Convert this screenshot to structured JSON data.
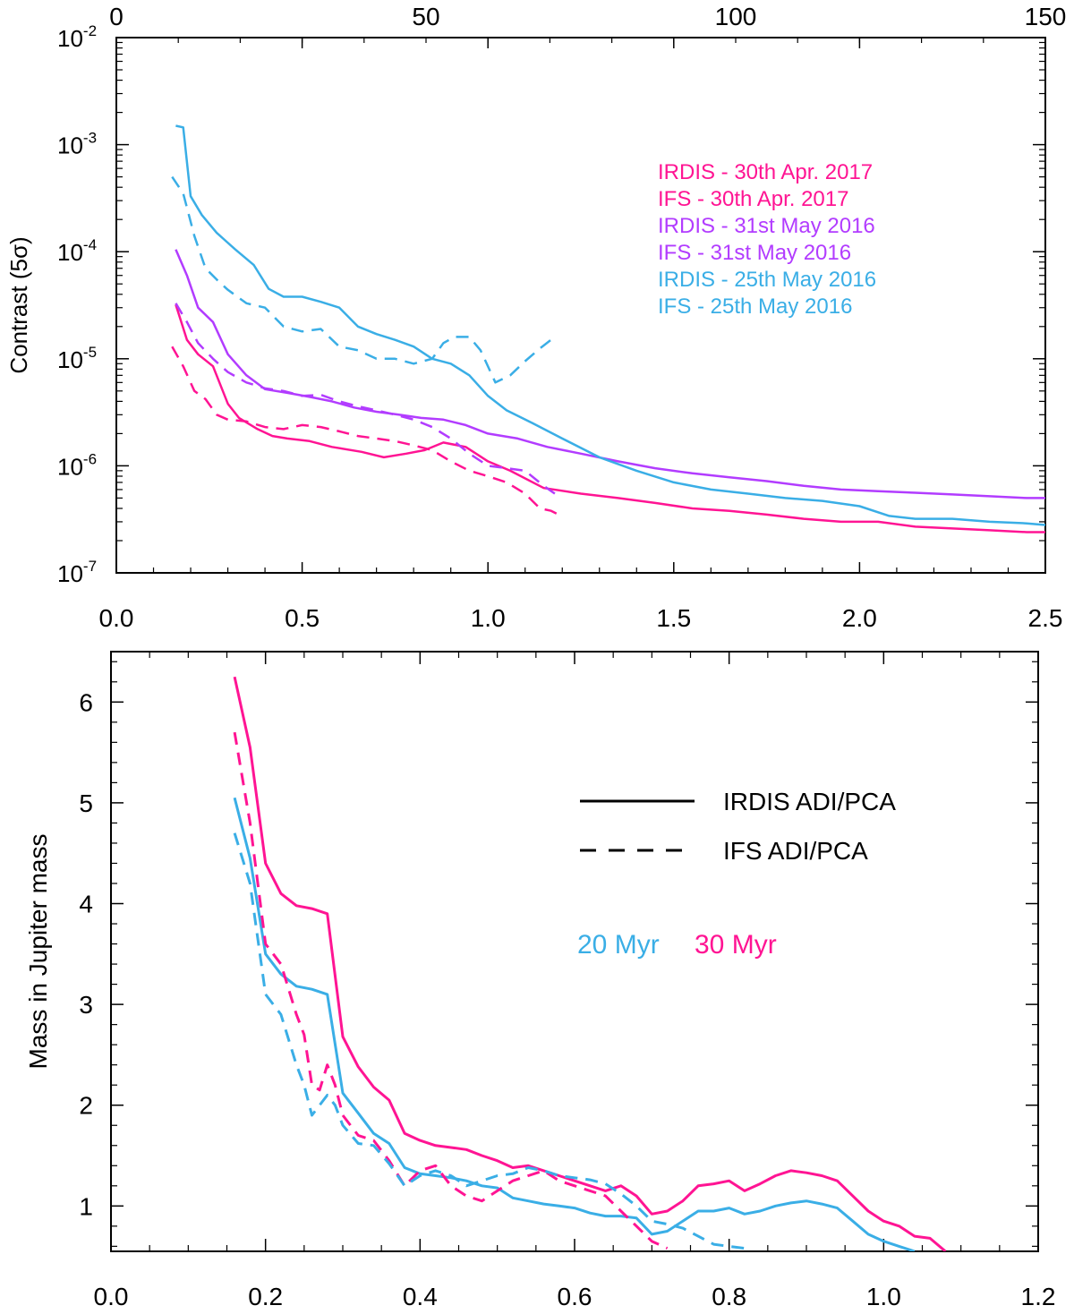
{
  "colors": {
    "irdis_2017": "#ff1493",
    "ifs_2017": "#ff1493",
    "irdis_2016_may31": "#b23cff",
    "ifs_2016_may31": "#b23cff",
    "irdis_2016_may25": "#3aaee6",
    "ifs_2016_may25": "#3aaee6",
    "black": "#000000",
    "myr20": "#3aaee6",
    "myr30": "#ff1493"
  },
  "chart_data": [
    {
      "type": "line",
      "yscale": "log",
      "title": "",
      "xlabel": "",
      "ylabel": "Contrast (5σ)",
      "xlim": [
        0,
        2.5
      ],
      "ylim": [
        1e-07,
        0.01
      ],
      "x_ticks": [
        "0.0",
        "0.5",
        "1.0",
        "1.5",
        "2.0",
        "2.5"
      ],
      "x_tick_values": [
        0,
        0.5,
        1.0,
        1.5,
        2.0,
        2.5
      ],
      "top_axis": {
        "range": [
          0,
          150
        ],
        "ticks": [
          "0",
          "50",
          "100",
          "150"
        ],
        "tick_values": [
          0,
          50,
          100,
          150
        ]
      },
      "y_ticks": [
        {
          "value": 1e-07,
          "base": "10",
          "exp": "-7"
        },
        {
          "value": 1e-06,
          "base": "10",
          "exp": "-6"
        },
        {
          "value": 1e-05,
          "base": "10",
          "exp": "-5"
        },
        {
          "value": 0.0001,
          "base": "10",
          "exp": "-4"
        },
        {
          "value": 0.001,
          "base": "10",
          "exp": "-3"
        },
        {
          "value": 0.01,
          "base": "10",
          "exp": "-2"
        }
      ],
      "legend": {
        "position": "top-right",
        "entries": [
          {
            "label": "IRDIS - 30th Apr. 2017",
            "color": "#ff1493"
          },
          {
            "label": "IFS - 30th Apr. 2017",
            "color": "#ff1493"
          },
          {
            "label": "IRDIS - 31st May 2016",
            "color": "#b23cff"
          },
          {
            "label": "IFS - 31st May 2016",
            "color": "#b23cff"
          },
          {
            "label": "IRDIS - 25th May 2016",
            "color": "#3aaee6"
          },
          {
            "label": "IFS - 25th May 2016",
            "color": "#3aaee6"
          }
        ]
      },
      "series": [
        {
          "name": "IRDIS - 30th Apr. 2017",
          "color": "#ff1493",
          "dashed": false,
          "x": [
            0.16,
            0.19,
            0.22,
            0.26,
            0.3,
            0.33,
            0.38,
            0.42,
            0.46,
            0.52,
            0.58,
            0.66,
            0.72,
            0.78,
            0.83,
            0.88,
            0.94,
            1.0,
            1.06,
            1.15,
            1.25,
            1.35,
            1.45,
            1.55,
            1.65,
            1.75,
            1.85,
            1.95,
            2.05,
            2.15,
            2.25,
            2.35,
            2.45,
            2.5
          ],
          "y": [
            3.2e-05,
            1.5e-05,
            1.1e-05,
            8.5e-06,
            3.8e-06,
            2.8e-06,
            2.2e-06,
            1.9e-06,
            1.8e-06,
            1.7e-06,
            1.5e-06,
            1.35e-06,
            1.2e-06,
            1.3e-06,
            1.4e-06,
            1.65e-06,
            1.5e-06,
            1.1e-06,
            9e-07,
            6.2e-07,
            5.5e-07,
            5e-07,
            4.5e-07,
            4e-07,
            3.8e-07,
            3.5e-07,
            3.2e-07,
            3e-07,
            3e-07,
            2.7e-07,
            2.6e-07,
            2.5e-07,
            2.4e-07,
            2.4e-07
          ]
        },
        {
          "name": "IFS - 30th Apr. 2017",
          "color": "#ff1493",
          "dashed": true,
          "x": [
            0.15,
            0.18,
            0.21,
            0.24,
            0.27,
            0.3,
            0.35,
            0.4,
            0.45,
            0.5,
            0.55,
            0.6,
            0.65,
            0.7,
            0.75,
            0.8,
            0.85,
            0.9,
            0.95,
            1.0,
            1.05,
            1.1,
            1.14,
            1.17,
            1.19
          ],
          "y": [
            1.3e-05,
            8.5e-06,
            5e-06,
            4.2e-06,
            3e-06,
            2.7e-06,
            2.6e-06,
            2.3e-06,
            2.2e-06,
            2.4e-06,
            2.3e-06,
            2.1e-06,
            1.9e-06,
            1.8e-06,
            1.7e-06,
            1.55e-06,
            1.4e-06,
            1.1e-06,
            9e-07,
            8e-07,
            7e-07,
            5.5e-07,
            4e-07,
            3.8e-07,
            3.5e-07
          ]
        },
        {
          "name": "IRDIS - 31st May 2016",
          "color": "#b23cff",
          "dashed": false,
          "x": [
            0.16,
            0.19,
            0.22,
            0.26,
            0.3,
            0.35,
            0.4,
            0.46,
            0.52,
            0.58,
            0.64,
            0.7,
            0.76,
            0.82,
            0.88,
            0.94,
            1.0,
            1.08,
            1.16,
            1.25,
            1.35,
            1.45,
            1.55,
            1.65,
            1.75,
            1.85,
            1.95,
            2.05,
            2.15,
            2.25,
            2.35,
            2.45,
            2.5
          ],
          "y": [
            0.000105,
            6e-05,
            3e-05,
            2.2e-05,
            1.1e-05,
            7e-06,
            5.2e-06,
            4.8e-06,
            4.4e-06,
            4e-06,
            3.5e-06,
            3.2e-06,
            3e-06,
            2.8e-06,
            2.7e-06,
            2.4e-06,
            2e-06,
            1.8e-06,
            1.5e-06,
            1.3e-06,
            1.1e-06,
            9.5e-07,
            8.5e-07,
            7.8e-07,
            7.2e-07,
            6.5e-07,
            6e-07,
            5.8e-07,
            5.6e-07,
            5.4e-07,
            5.2e-07,
            5e-07,
            5e-07
          ]
        },
        {
          "name": "IFS - 31st May 2016",
          "color": "#b23cff",
          "dashed": true,
          "x": [
            0.16,
            0.19,
            0.22,
            0.26,
            0.3,
            0.35,
            0.4,
            0.45,
            0.5,
            0.55,
            0.6,
            0.65,
            0.7,
            0.75,
            0.8,
            0.85,
            0.9,
            0.95,
            1.0,
            1.05,
            1.1,
            1.15,
            1.18
          ],
          "y": [
            3.3e-05,
            2.2e-05,
            1.4e-05,
            1e-05,
            7.5e-06,
            6e-06,
            5.3e-06,
            5e-06,
            4.5e-06,
            4.6e-06,
            4e-06,
            3.6e-06,
            3.3e-06,
            3e-06,
            2.7e-06,
            2.3e-06,
            1.8e-06,
            1.3e-06,
            1e-06,
            9.5e-07,
            9e-07,
            6.5e-07,
            5.5e-07
          ]
        },
        {
          "name": "IRDIS - 25th May 2016",
          "color": "#3aaee6",
          "dashed": false,
          "x": [
            0.16,
            0.18,
            0.2,
            0.23,
            0.27,
            0.32,
            0.37,
            0.41,
            0.45,
            0.5,
            0.55,
            0.6,
            0.65,
            0.7,
            0.75,
            0.8,
            0.85,
            0.9,
            0.95,
            1.0,
            1.05,
            1.12,
            1.2,
            1.3,
            1.4,
            1.5,
            1.6,
            1.7,
            1.8,
            1.9,
            2.0,
            2.08,
            2.15,
            2.25,
            2.35,
            2.45,
            2.5
          ],
          "y": [
            0.0015,
            0.00145,
            0.00033,
            0.00022,
            0.00015,
            0.000105,
            7.5e-05,
            4.5e-05,
            3.8e-05,
            3.8e-05,
            3.4e-05,
            3e-05,
            2e-05,
            1.7e-05,
            1.5e-05,
            1.3e-05,
            1e-05,
            9e-06,
            7e-06,
            4.5e-06,
            3.3e-06,
            2.5e-06,
            1.8e-06,
            1.2e-06,
            9e-07,
            7e-07,
            6e-07,
            5.5e-07,
            5e-07,
            4.7e-07,
            4.2e-07,
            3.4e-07,
            3.2e-07,
            3.2e-07,
            3e-07,
            2.9e-07,
            2.8e-07
          ]
        },
        {
          "name": "IFS - 25th May 2016",
          "color": "#3aaee6",
          "dashed": true,
          "x": [
            0.15,
            0.18,
            0.21,
            0.24,
            0.27,
            0.3,
            0.35,
            0.4,
            0.45,
            0.5,
            0.55,
            0.6,
            0.65,
            0.7,
            0.75,
            0.8,
            0.85,
            0.88,
            0.91,
            0.95,
            0.98,
            1.02,
            1.06,
            1.1,
            1.14,
            1.18
          ],
          "y": [
            0.0005,
            0.00035,
            0.00014,
            7e-05,
            5.5e-05,
            4.4e-05,
            3.3e-05,
            3e-05,
            2e-05,
            1.8e-05,
            1.9e-05,
            1.3e-05,
            1.2e-05,
            1e-05,
            1e-05,
            9e-06,
            1e-05,
            1.4e-05,
            1.6e-05,
            1.6e-05,
            1.2e-05,
            6e-06,
            7e-06,
            9.5e-06,
            1.25e-05,
            1.6e-05
          ]
        }
      ]
    },
    {
      "type": "line",
      "title": "",
      "xlabel": "",
      "ylabel": "Mass in Jupiter mass",
      "xlim": [
        0,
        1.2
      ],
      "ylim": [
        0.55,
        6.5
      ],
      "x_ticks": [
        "0.0",
        "0.2",
        "0.4",
        "0.6",
        "0.8",
        "1.0",
        "1.2"
      ],
      "x_tick_values": [
        0,
        0.2,
        0.4,
        0.6,
        0.8,
        1.0,
        1.2
      ],
      "y_ticks": [
        "1",
        "2",
        "3",
        "4",
        "5",
        "6"
      ],
      "y_tick_values": [
        1,
        2,
        3,
        4,
        5,
        6
      ],
      "legend": {
        "position": "top-right",
        "entries": [
          {
            "label": "IRDIS ADI/PCA",
            "style": "solid",
            "color": "#000000"
          },
          {
            "label": "IFS ADI/PCA",
            "style": "dashed",
            "color": "#000000"
          }
        ]
      },
      "age_labels": [
        {
          "label": "20 Myr",
          "color": "#3aaee6"
        },
        {
          "label": "30 Myr",
          "color": "#ff1493"
        }
      ],
      "series": [
        {
          "name": "IRDIS 30 Myr",
          "color": "#ff1493",
          "dashed": false,
          "x": [
            0.16,
            0.18,
            0.2,
            0.22,
            0.24,
            0.26,
            0.28,
            0.3,
            0.32,
            0.34,
            0.36,
            0.38,
            0.4,
            0.42,
            0.44,
            0.46,
            0.48,
            0.5,
            0.52,
            0.54,
            0.56,
            0.58,
            0.6,
            0.62,
            0.64,
            0.66,
            0.68,
            0.7,
            0.72,
            0.74,
            0.76,
            0.78,
            0.8,
            0.82,
            0.84,
            0.86,
            0.88,
            0.9,
            0.92,
            0.94,
            0.96,
            0.98,
            1.0,
            1.02,
            1.04,
            1.06,
            1.08
          ],
          "y": [
            6.25,
            5.55,
            4.4,
            4.1,
            3.98,
            3.95,
            3.9,
            2.68,
            2.38,
            2.18,
            2.05,
            1.72,
            1.65,
            1.6,
            1.58,
            1.56,
            1.5,
            1.45,
            1.38,
            1.4,
            1.35,
            1.3,
            1.25,
            1.2,
            1.15,
            1.2,
            1.1,
            0.92,
            0.95,
            1.05,
            1.2,
            1.22,
            1.25,
            1.15,
            1.22,
            1.3,
            1.35,
            1.33,
            1.3,
            1.25,
            1.1,
            0.95,
            0.85,
            0.8,
            0.7,
            0.68,
            0.55
          ]
        },
        {
          "name": "IRDIS 20 Myr",
          "color": "#3aaee6",
          "dashed": false,
          "x": [
            0.16,
            0.18,
            0.2,
            0.22,
            0.24,
            0.26,
            0.28,
            0.3,
            0.32,
            0.34,
            0.36,
            0.38,
            0.4,
            0.42,
            0.44,
            0.46,
            0.48,
            0.5,
            0.52,
            0.54,
            0.56,
            0.58,
            0.6,
            0.62,
            0.64,
            0.66,
            0.68,
            0.7,
            0.72,
            0.74,
            0.76,
            0.78,
            0.8,
            0.82,
            0.84,
            0.86,
            0.88,
            0.9,
            0.92,
            0.94,
            0.96,
            0.98,
            1.0,
            1.02,
            1.04
          ],
          "y": [
            5.05,
            4.45,
            3.5,
            3.3,
            3.18,
            3.15,
            3.1,
            2.12,
            1.92,
            1.72,
            1.62,
            1.38,
            1.32,
            1.3,
            1.28,
            1.25,
            1.2,
            1.18,
            1.08,
            1.05,
            1.02,
            1.0,
            0.98,
            0.93,
            0.9,
            0.9,
            0.88,
            0.72,
            0.75,
            0.85,
            0.95,
            0.95,
            0.98,
            0.92,
            0.95,
            1.0,
            1.03,
            1.05,
            1.02,
            0.98,
            0.85,
            0.72,
            0.65,
            0.6,
            0.55
          ]
        },
        {
          "name": "IFS 30 Myr",
          "color": "#ff1493",
          "dashed": true,
          "x": [
            0.16,
            0.18,
            0.2,
            0.22,
            0.24,
            0.25,
            0.26,
            0.27,
            0.28,
            0.29,
            0.3,
            0.32,
            0.34,
            0.36,
            0.38,
            0.4,
            0.42,
            0.44,
            0.46,
            0.48,
            0.5,
            0.52,
            0.54,
            0.56,
            0.58,
            0.6,
            0.62,
            0.64,
            0.66,
            0.68,
            0.7,
            0.72
          ],
          "y": [
            5.7,
            4.8,
            3.6,
            3.4,
            2.9,
            2.7,
            2.2,
            2.15,
            2.4,
            2.2,
            1.9,
            1.7,
            1.65,
            1.45,
            1.2,
            1.35,
            1.4,
            1.2,
            1.1,
            1.05,
            1.15,
            1.25,
            1.3,
            1.35,
            1.25,
            1.2,
            1.15,
            1.1,
            0.95,
            0.8,
            0.65,
            0.58
          ]
        },
        {
          "name": "IFS 20 Myr",
          "color": "#3aaee6",
          "dashed": true,
          "x": [
            0.16,
            0.18,
            0.2,
            0.22,
            0.24,
            0.25,
            0.26,
            0.27,
            0.28,
            0.29,
            0.3,
            0.32,
            0.34,
            0.36,
            0.38,
            0.4,
            0.42,
            0.44,
            0.46,
            0.48,
            0.5,
            0.52,
            0.54,
            0.56,
            0.58,
            0.6,
            0.62,
            0.64,
            0.66,
            0.68,
            0.7,
            0.72,
            0.74,
            0.76,
            0.78,
            0.8,
            0.82
          ],
          "y": [
            4.7,
            4.2,
            3.1,
            2.9,
            2.4,
            2.2,
            1.9,
            2.0,
            2.1,
            2.0,
            1.8,
            1.62,
            1.6,
            1.42,
            1.2,
            1.3,
            1.35,
            1.3,
            1.2,
            1.25,
            1.3,
            1.32,
            1.38,
            1.35,
            1.3,
            1.28,
            1.26,
            1.22,
            1.12,
            1.0,
            0.85,
            0.82,
            0.78,
            0.7,
            0.62,
            0.6,
            0.58
          ]
        }
      ]
    }
  ]
}
